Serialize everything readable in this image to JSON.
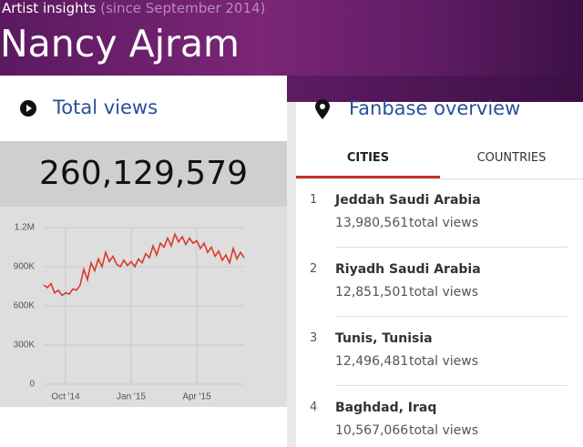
{
  "header": {
    "label": "Artist insights",
    "period": "(since September 2014)",
    "title": "Nancy Ajram"
  },
  "total_views": {
    "title": "Total views",
    "value": "260,129,579"
  },
  "chart_data": {
    "type": "line",
    "categories": [
      null,
      null,
      null,
      null,
      null,
      null,
      "Oct '14",
      null,
      null,
      null,
      null,
      null,
      null,
      null,
      null,
      null,
      null,
      null,
      null,
      null,
      null,
      null,
      null,
      null,
      "Jan '15",
      null,
      null,
      null,
      null,
      null,
      null,
      null,
      null,
      null,
      null,
      null,
      null,
      null,
      null,
      null,
      null,
      null,
      "Apr '15",
      null,
      null,
      null,
      null,
      null,
      null,
      null,
      null,
      null,
      null,
      null,
      null,
      null
    ],
    "values": [
      760000,
      740000,
      770000,
      700000,
      720000,
      680000,
      700000,
      690000,
      730000,
      720000,
      760000,
      880000,
      800000,
      930000,
      870000,
      960000,
      900000,
      1010000,
      940000,
      980000,
      920000,
      900000,
      950000,
      910000,
      940000,
      900000,
      960000,
      930000,
      1000000,
      970000,
      1060000,
      990000,
      1080000,
      1050000,
      1120000,
      1060000,
      1150000,
      1090000,
      1130000,
      1070000,
      1120000,
      1080000,
      1100000,
      1040000,
      1080000,
      1010000,
      1050000,
      980000,
      1020000,
      950000,
      990000,
      930000,
      1040000,
      960000,
      1010000,
      970000
    ],
    "color": "#d93a2b",
    "ylim": [
      0,
      1200000
    ],
    "yticks": [
      0,
      {
        "value": 300000,
        "label": "300K"
      },
      {
        "value": 600000,
        "label": "600K"
      },
      {
        "value": 900000,
        "label": "900K"
      },
      {
        "value": 1200000,
        "label": "1.2M"
      }
    ],
    "grid": true
  },
  "fanbase": {
    "title": "Fanbase overview",
    "tabs": [
      "CITIES",
      "COUNTRIES"
    ],
    "cities": [
      {
        "rank": "1",
        "name": "Jeddah Saudi Arabia",
        "views": "13,980,561",
        "unit": "total views"
      },
      {
        "rank": "2",
        "name": "Riyadh Saudi Arabia",
        "views": "12,851,501",
        "unit": "total views"
      },
      {
        "rank": "3",
        "name": "Tunis, Tunisia",
        "views": "12,496,481",
        "unit": "total views"
      },
      {
        "rank": "4",
        "name": "Baghdad, Iraq",
        "views": "10,567,066",
        "unit": "total views"
      }
    ]
  }
}
